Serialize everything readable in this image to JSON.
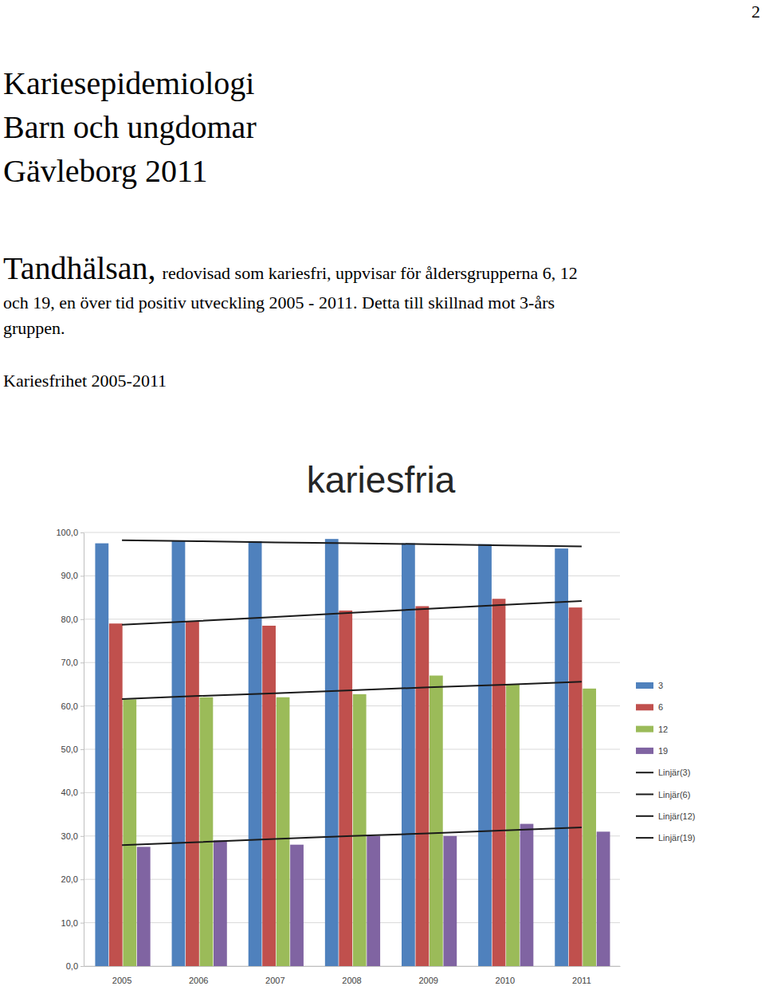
{
  "document": {
    "page_number": "2",
    "heading": [
      "Kariesepidemiologi",
      "Barn och ungdomar",
      "Gävleborg 2011"
    ],
    "lead": "Tandhälsan,",
    "paragraph": [
      "redovisad som kariesfri, uppvisar för åldersgrupperna 6, 12",
      "och 19,  en över tid positiv utveckling 2005 - 2011. Detta till skillnad mot 3-års",
      "gruppen."
    ],
    "caption": "Kariesfrihet 2005-2011"
  },
  "chart_data": {
    "type": "bar",
    "title": "kariesfria",
    "categories": [
      "2005",
      "2006",
      "2007",
      "2008",
      "2009",
      "2010",
      "2011"
    ],
    "series": [
      {
        "name": "3",
        "color": "#4f81bd",
        "values": [
          97.5,
          98.0,
          98.0,
          98.5,
          97.5,
          97.3,
          96.3
        ]
      },
      {
        "name": "6",
        "color": "#c0504d",
        "values": [
          79.0,
          79.5,
          78.5,
          82.0,
          83.0,
          84.7,
          82.7
        ]
      },
      {
        "name": "12",
        "color": "#9bbb59",
        "values": [
          61.5,
          62.0,
          62.0,
          62.7,
          67.0,
          65.0,
          64.0
        ]
      },
      {
        "name": "19",
        "color": "#8064a2",
        "values": [
          27.5,
          29.0,
          28.0,
          30.0,
          30.0,
          32.8,
          31.0
        ]
      },
      {
        "name": "Linjär(3)",
        "color": "#1a1a1a",
        "type": "line",
        "values": [
          98.2,
          98.0,
          97.7,
          97.5,
          97.3,
          97.0,
          96.8
        ]
      },
      {
        "name": "Linjär(6)",
        "color": "#1a1a1a",
        "type": "line",
        "values": [
          78.7,
          79.6,
          80.5,
          81.5,
          82.4,
          83.3,
          84.2
        ]
      },
      {
        "name": "Linjär(12)",
        "color": "#1a1a1a",
        "type": "line",
        "values": [
          61.6,
          62.3,
          62.9,
          63.6,
          64.3,
          64.9,
          65.6
        ]
      },
      {
        "name": "Linjär(19)",
        "color": "#1a1a1a",
        "type": "line",
        "values": [
          27.9,
          28.6,
          29.3,
          30.0,
          30.6,
          31.3,
          32.0
        ]
      }
    ],
    "ylim": [
      0,
      100
    ],
    "yticks": [
      {
        "value": 0,
        "label": "0,0"
      },
      {
        "value": 10,
        "label": "10,0"
      },
      {
        "value": 20,
        "label": "20,0"
      },
      {
        "value": 30,
        "label": "30,0"
      },
      {
        "value": 40,
        "label": "40,0"
      },
      {
        "value": 50,
        "label": "50,0"
      },
      {
        "value": 60,
        "label": "60,0"
      },
      {
        "value": 70,
        "label": "70,0"
      },
      {
        "value": 80,
        "label": "80,0"
      },
      {
        "value": 90,
        "label": "90,0"
      },
      {
        "value": 100,
        "label": "100,0"
      }
    ],
    "grid": true,
    "legend": "right"
  }
}
